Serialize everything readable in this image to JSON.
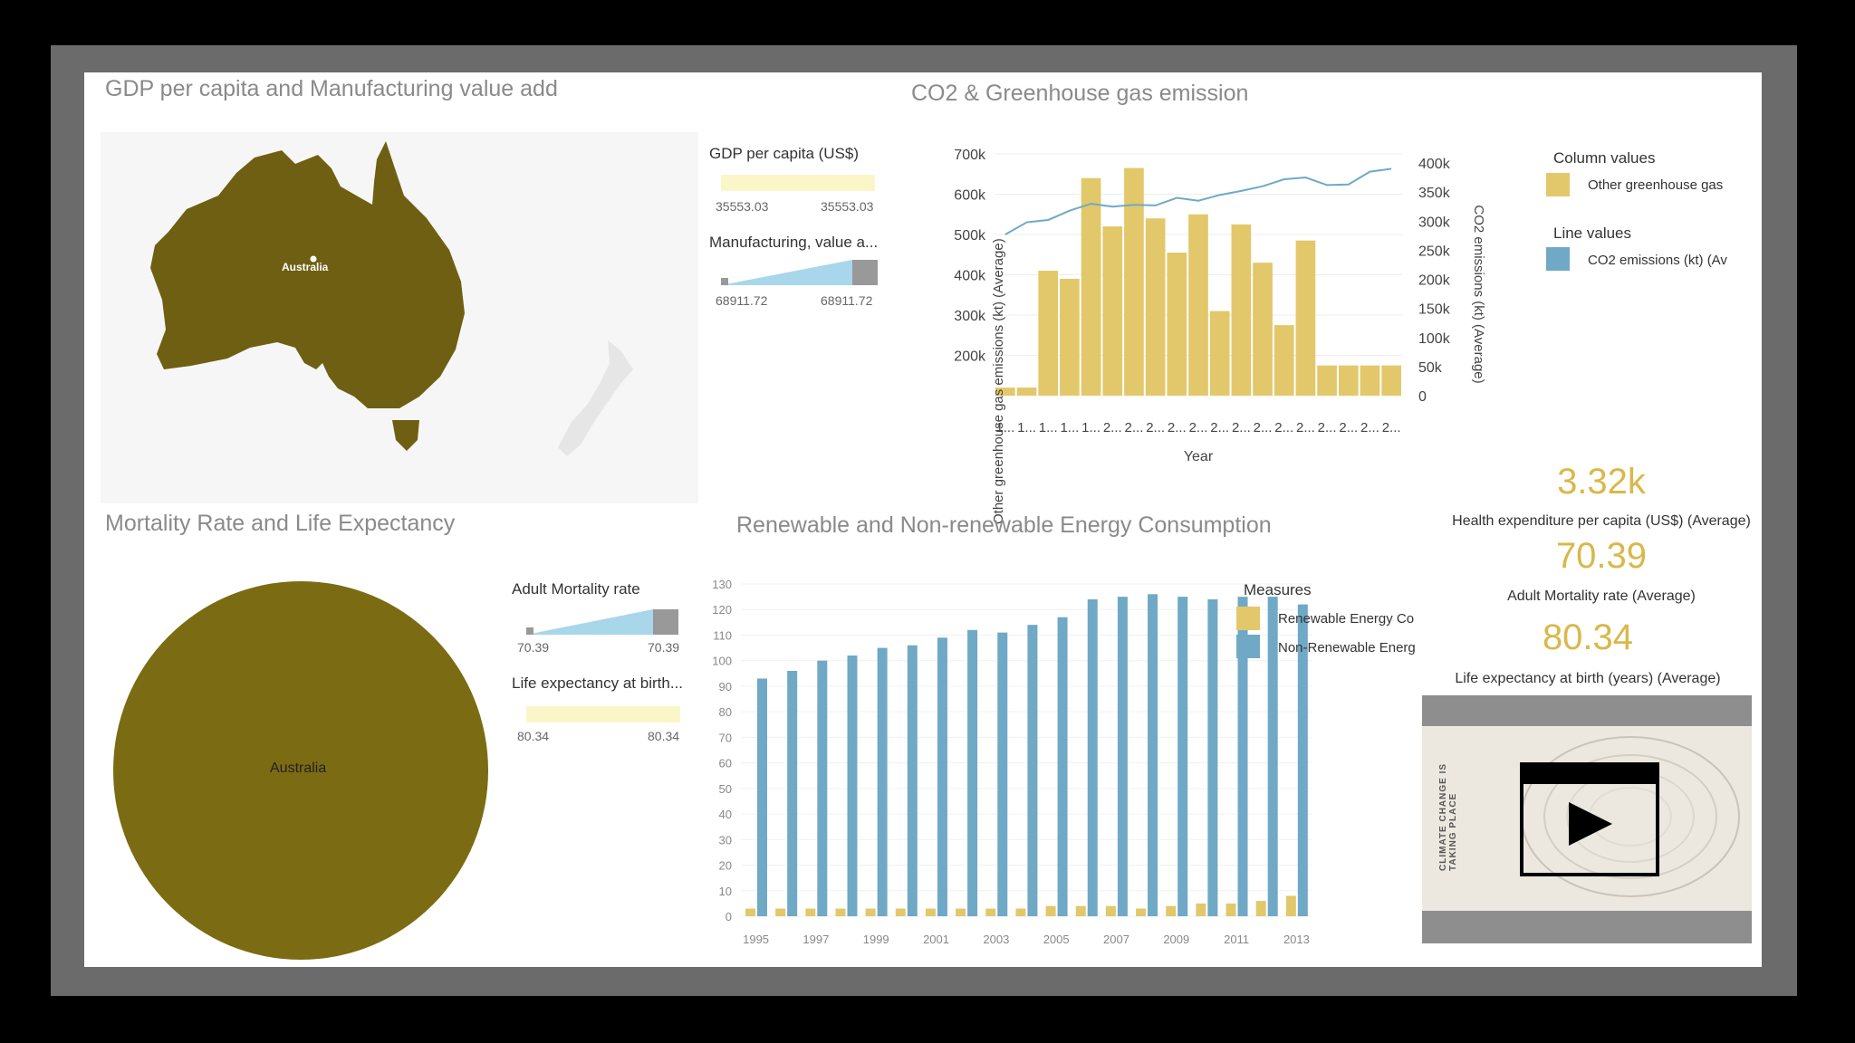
{
  "panels": {
    "gdp": {
      "title": "GDP per capita and Manufacturing value add",
      "map_label": "Australia",
      "gdp_legend": {
        "title": "GDP per capita (US$)",
        "min": "35553.03",
        "max": "35553.03"
      },
      "mfg_legend": {
        "title": "Manufacturing, value a...",
        "min": "68911.72",
        "max": "68911.72"
      }
    },
    "co2": {
      "title": "CO2 & Greenhouse gas emission",
      "legend_column_title": "Column values",
      "legend_column_item": "Other greenhouse gas",
      "legend_line_title": "Line values",
      "legend_line_item": "CO2 emissions (kt) (Av"
    },
    "mortality": {
      "title": "Mortality Rate and Life Expectancy",
      "circle_label": "Australia",
      "mort_legend": {
        "title": "Adult Mortality rate",
        "min": "70.39",
        "max": "70.39"
      },
      "life_legend": {
        "title": "Life expectancy at birth...",
        "min": "80.34",
        "max": "80.34"
      }
    },
    "energy": {
      "title": "Renewable and Non-renewable Energy Consumption",
      "legend_title": "Measures",
      "legend_items": [
        "Renewable Energy Co",
        "Non-Renewable Energ"
      ]
    },
    "kpis": [
      {
        "value": "3.32k",
        "label": "Health expenditure per capita (US$) (Average)"
      },
      {
        "value": "70.39",
        "label": "Adult Mortality rate (Average)"
      },
      {
        "value": "80.34",
        "label": "Life expectancy at birth (years) (Average)"
      }
    ],
    "video": {
      "poster_text": "CLIMATE CHANGE IS TAKING PLACE"
    }
  },
  "colors": {
    "gold": "#e2c86a",
    "blue": "#6fa9c6",
    "olive": "#6f5f12",
    "pale_yellow": "#fbf6c8"
  },
  "chart_data": [
    {
      "type": "bar",
      "title": "CO2 & Greenhouse gas emission",
      "xlabel": "Year",
      "ylabel": "Other greenhouse gas emissions (kt) (Average)",
      "y2label": "CO2 emissions (kt) (Average)",
      "categories": [
        "1...",
        "1...",
        "1...",
        "1...",
        "1...",
        "2...",
        "2...",
        "2...",
        "2...",
        "2...",
        "2...",
        "2...",
        "2...",
        "2...",
        "2...",
        "2...",
        "2...",
        "2...",
        "2..."
      ],
      "series": [
        {
          "name": "Other greenhouse gas",
          "kind": "bar",
          "axis": "left",
          "values": [
            120000,
            120000,
            410000,
            390000,
            640000,
            520000,
            665000,
            540000,
            455000,
            550000,
            310000,
            525000,
            430000,
            275000,
            485000,
            175000,
            175000,
            175000,
            175000
          ]
        },
        {
          "name": "CO2 emissions (kt) (Average)",
          "kind": "line",
          "axis": "right",
          "values": [
            277000,
            298000,
            302000,
            318000,
            330000,
            325000,
            328000,
            327000,
            340000,
            335000,
            345000,
            352000,
            360000,
            372000,
            375000,
            362000,
            363000,
            385000,
            390000
          ]
        }
      ],
      "ylim": [
        100000,
        700000
      ],
      "y2lim": [
        0,
        400000
      ],
      "yticks": [
        "700k",
        "600k",
        "500k",
        "400k",
        "300k",
        "200k"
      ],
      "y2ticks": [
        "400k",
        "350k",
        "300k",
        "250k",
        "200k",
        "150k",
        "100k",
        "50k",
        "0"
      ]
    },
    {
      "type": "bar",
      "title": "Renewable and Non-renewable Energy Consumption",
      "categories": [
        "1995",
        "1996",
        "1997",
        "1998",
        "1999",
        "2000",
        "2001",
        "2002",
        "2003",
        "2004",
        "2005",
        "2006",
        "2007",
        "2008",
        "2009",
        "2010",
        "2011",
        "2012",
        "2013"
      ],
      "xticks": [
        "1995",
        "1997",
        "1999",
        "2001",
        "2003",
        "2005",
        "2007",
        "2009",
        "2011",
        "2013"
      ],
      "series": [
        {
          "name": "Renewable Energy Consumption",
          "values": [
            3,
            3,
            3,
            3,
            3,
            3,
            3,
            3,
            3,
            3,
            4,
            4,
            4,
            3,
            4,
            5,
            5,
            6,
            8
          ]
        },
        {
          "name": "Non-Renewable Energy Consumption",
          "values": [
            93,
            96,
            100,
            102,
            105,
            106,
            109,
            112,
            111,
            114,
            117,
            124,
            125,
            126,
            125,
            124,
            125,
            125,
            122
          ]
        }
      ],
      "ylim": [
        0,
        130
      ],
      "yticks": [
        0,
        10,
        20,
        30,
        40,
        50,
        60,
        70,
        80,
        90,
        100,
        110,
        120,
        130
      ]
    }
  ]
}
